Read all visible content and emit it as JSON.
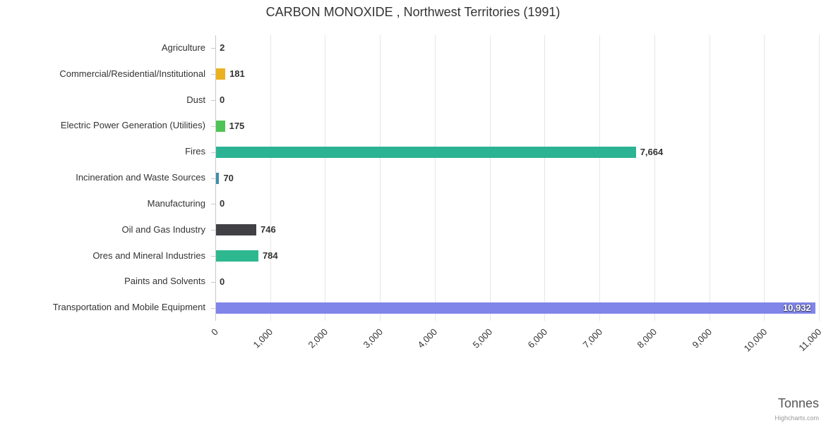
{
  "credits": "Highcharts.com",
  "chart_data": {
    "type": "bar",
    "orientation": "horizontal",
    "title": "CARBON MONOXIDE , Northwest Territories (1991)",
    "xlabel": "Tonnes",
    "ylabel": "",
    "categories": [
      "Agriculture",
      "Commercial/Residential/Institutional",
      "Dust",
      "Electric Power Generation (Utilities)",
      "Fires",
      "Incineration and Waste Sources",
      "Manufacturing",
      "Oil and Gas Industry",
      "Ores and Mineral Industries",
      "Paints and Solvents",
      "Transportation and Mobile Equipment"
    ],
    "values": [
      2,
      181,
      0,
      175,
      7664,
      70,
      0,
      746,
      784,
      0,
      10932
    ],
    "value_labels": [
      "2",
      "181",
      "0",
      "175",
      "7,664",
      "70",
      "0",
      "746",
      "784",
      "0",
      "10,932"
    ],
    "bar_colors": [
      "#2bb394",
      "#eab221",
      "#999999",
      "#4ec455",
      "#2bb394",
      "#3d8fae",
      "#999999",
      "#404045",
      "#2eb88f",
      "#999999",
      "#8085e9"
    ],
    "label_inside": [
      false,
      false,
      false,
      false,
      false,
      false,
      false,
      false,
      false,
      false,
      true
    ],
    "xlim": [
      0,
      11000
    ],
    "xticks": [
      0,
      1000,
      2000,
      3000,
      4000,
      5000,
      6000,
      7000,
      8000,
      9000,
      10000,
      11000
    ],
    "xtick_labels": [
      "0",
      "1,000",
      "2,000",
      "3,000",
      "4,000",
      "5,000",
      "6,000",
      "7,000",
      "8,000",
      "9,000",
      "10,000",
      "11,000"
    ],
    "grid": true,
    "legend": false,
    "grid_color": "#e6e6e6",
    "axis_color": "#c8c8c8"
  }
}
